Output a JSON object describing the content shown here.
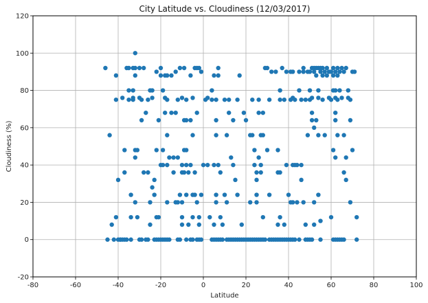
{
  "chart_data": {
    "type": "scatter",
    "title": "City Latitude vs. Cloudiness  (12/03/2017)",
    "xlabel": "Latitude",
    "ylabel": "Cloudiness (%)",
    "xlim": [
      -80,
      100
    ],
    "ylim": [
      -20,
      120
    ],
    "xticks": [
      -80,
      -60,
      -40,
      -20,
      0,
      20,
      40,
      60,
      80,
      100
    ],
    "yticks": [
      -20,
      0,
      20,
      40,
      60,
      80,
      100,
      120
    ],
    "grid": true,
    "marker_color": "#1f77b4",
    "points": [
      [
        -46,
        92
      ],
      [
        -44,
        56
      ],
      [
        -43,
        8
      ],
      [
        -45,
        0
      ],
      [
        -42,
        0
      ],
      [
        -41,
        12
      ],
      [
        -41,
        75
      ],
      [
        -41,
        88
      ],
      [
        -40,
        32
      ],
      [
        -39,
        0
      ],
      [
        -38,
        76
      ],
      [
        -37,
        48
      ],
      [
        -37,
        36
      ],
      [
        -36,
        92
      ],
      [
        -35,
        92
      ],
      [
        -35,
        80
      ],
      [
        -35,
        75
      ],
      [
        -34,
        24
      ],
      [
        -34,
        12
      ],
      [
        -34,
        0
      ],
      [
        -33,
        92
      ],
      [
        -33,
        80
      ],
      [
        -33,
        76
      ],
      [
        -33,
        75
      ],
      [
        -32,
        100
      ],
      [
        -32,
        92
      ],
      [
        -32,
        88
      ],
      [
        -32,
        48
      ],
      [
        -32,
        44
      ],
      [
        -32,
        20
      ],
      [
        -31,
        12
      ],
      [
        -31,
        48
      ],
      [
        -30,
        92
      ],
      [
        -30,
        76
      ],
      [
        -29,
        75
      ],
      [
        -29,
        64
      ],
      [
        -29,
        0
      ],
      [
        -28,
        92
      ],
      [
        -28,
        36
      ],
      [
        -27,
        68
      ],
      [
        -26,
        75
      ],
      [
        -26,
        36
      ],
      [
        -25,
        80
      ],
      [
        -25,
        8
      ],
      [
        -25,
        20
      ],
      [
        -24,
        80
      ],
      [
        -24,
        76
      ],
      [
        -24,
        28
      ],
      [
        -23,
        32
      ],
      [
        -23,
        24
      ],
      [
        -23,
        0
      ],
      [
        -22,
        90
      ],
      [
        -22,
        48
      ],
      [
        -22,
        12
      ],
      [
        -21,
        64
      ],
      [
        -21,
        12
      ],
      [
        -20,
        92
      ],
      [
        -20,
        88
      ],
      [
        -20,
        40
      ],
      [
        -19,
        80
      ],
      [
        -19,
        48
      ],
      [
        -19,
        40
      ],
      [
        -19,
        0
      ],
      [
        -18,
        88
      ],
      [
        -18,
        76
      ],
      [
        -18,
        68
      ],
      [
        -17,
        88
      ],
      [
        -17,
        75
      ],
      [
        -17,
        56
      ],
      [
        -17,
        40
      ],
      [
        -17,
        20
      ],
      [
        -16,
        44
      ],
      [
        -16,
        0
      ],
      [
        -15,
        88
      ],
      [
        -15,
        68
      ],
      [
        -14,
        44
      ],
      [
        -14,
        36
      ],
      [
        -13,
        90
      ],
      [
        -13,
        68
      ],
      [
        -13,
        20
      ],
      [
        -12,
        75
      ],
      [
        -12,
        44
      ],
      [
        -12,
        20
      ],
      [
        -11,
        92
      ],
      [
        -11,
        24
      ],
      [
        -10,
        76
      ],
      [
        -10,
        40
      ],
      [
        -10,
        36
      ],
      [
        -10,
        20
      ],
      [
        -10,
        12
      ],
      [
        -10,
        8
      ],
      [
        -9,
        92
      ],
      [
        -9,
        64
      ],
      [
        -9,
        48
      ],
      [
        -9,
        36
      ],
      [
        -8,
        75
      ],
      [
        -8,
        64
      ],
      [
        -8,
        48
      ],
      [
        -8,
        24
      ],
      [
        -8,
        40
      ],
      [
        -7,
        36
      ],
      [
        -7,
        8
      ],
      [
        -6,
        88
      ],
      [
        -6,
        64
      ],
      [
        -6,
        40
      ],
      [
        -6,
        0
      ],
      [
        -5,
        76
      ],
      [
        -5,
        56
      ],
      [
        -5,
        24
      ],
      [
        -5,
        12
      ],
      [
        -4,
        92
      ],
      [
        -4,
        36
      ],
      [
        -4,
        24
      ],
      [
        -3,
        92
      ],
      [
        -3,
        68
      ],
      [
        -3,
        20
      ],
      [
        -2,
        92
      ],
      [
        -2,
        12
      ],
      [
        -2,
        8
      ],
      [
        -1,
        90
      ],
      [
        -1,
        24
      ],
      [
        -1,
        0
      ],
      [
        0,
        40
      ],
      [
        1,
        75
      ],
      [
        2,
        76
      ],
      [
        2,
        40
      ],
      [
        3,
        12
      ],
      [
        4,
        75
      ],
      [
        4,
        80
      ],
      [
        4,
        0
      ],
      [
        5,
        88
      ],
      [
        5,
        40
      ],
      [
        5,
        8
      ],
      [
        6,
        75
      ],
      [
        6,
        64
      ],
      [
        6,
        56
      ],
      [
        6,
        24
      ],
      [
        6,
        20
      ],
      [
        7,
        92
      ],
      [
        7,
        88
      ],
      [
        7,
        40
      ],
      [
        8,
        36
      ],
      [
        8,
        12
      ],
      [
        9,
        8
      ],
      [
        9,
        0
      ],
      [
        10,
        24
      ],
      [
        10,
        75
      ],
      [
        11,
        56
      ],
      [
        11,
        20
      ],
      [
        12,
        75
      ],
      [
        12,
        68
      ],
      [
        13,
        44
      ],
      [
        14,
        64
      ],
      [
        14,
        40
      ],
      [
        15,
        32
      ],
      [
        15,
        0
      ],
      [
        16,
        75
      ],
      [
        16,
        24
      ],
      [
        17,
        88
      ],
      [
        18,
        8
      ],
      [
        18,
        0
      ],
      [
        19,
        68
      ],
      [
        20,
        64
      ],
      [
        21,
        0
      ],
      [
        22,
        20
      ],
      [
        22,
        56
      ],
      [
        23,
        56
      ],
      [
        23,
        75
      ],
      [
        24,
        48
      ],
      [
        24,
        40
      ],
      [
        25,
        36
      ],
      [
        25,
        32
      ],
      [
        25,
        24
      ],
      [
        25,
        20
      ],
      [
        25,
        0
      ],
      [
        26,
        75
      ],
      [
        26,
        68
      ],
      [
        26,
        44
      ],
      [
        27,
        40
      ],
      [
        27,
        36
      ],
      [
        27,
        56
      ],
      [
        28,
        12
      ],
      [
        28,
        68
      ],
      [
        28,
        56
      ],
      [
        29,
        92
      ],
      [
        29,
        0
      ],
      [
        30,
        92
      ],
      [
        30,
        48
      ],
      [
        31,
        24
      ],
      [
        31,
        75
      ],
      [
        32,
        90
      ],
      [
        33,
        0
      ],
      [
        34,
        90
      ],
      [
        35,
        48
      ],
      [
        35,
        8
      ],
      [
        35,
        36
      ],
      [
        36,
        80
      ],
      [
        36,
        75
      ],
      [
        36,
        36
      ],
      [
        36,
        12
      ],
      [
        37,
        92
      ],
      [
        38,
        75
      ],
      [
        38,
        8
      ],
      [
        39,
        90
      ],
      [
        39,
        40
      ],
      [
        40,
        24
      ],
      [
        40,
        0
      ],
      [
        41,
        90
      ],
      [
        41,
        20
      ],
      [
        41,
        75
      ],
      [
        42,
        90
      ],
      [
        42,
        76
      ],
      [
        42,
        40
      ],
      [
        42,
        20
      ],
      [
        43,
        75
      ],
      [
        43,
        40
      ],
      [
        43,
        0
      ],
      [
        44,
        40
      ],
      [
        44,
        20
      ],
      [
        45,
        90
      ],
      [
        45,
        80
      ],
      [
        46,
        75
      ],
      [
        46,
        40
      ],
      [
        46,
        32
      ],
      [
        47,
        92
      ],
      [
        47,
        90
      ],
      [
        47,
        20
      ],
      [
        48,
        75
      ],
      [
        48,
        8
      ],
      [
        49,
        90
      ],
      [
        49,
        56
      ],
      [
        49,
        0
      ],
      [
        50,
        90
      ],
      [
        50,
        80
      ],
      [
        50,
        75
      ],
      [
        50,
        0
      ],
      [
        51,
        92
      ],
      [
        51,
        76
      ],
      [
        51,
        68
      ],
      [
        51,
        64
      ],
      [
        52,
        92
      ],
      [
        52,
        90
      ],
      [
        52,
        60
      ],
      [
        52,
        20
      ],
      [
        52,
        8
      ],
      [
        53,
        92
      ],
      [
        53,
        88
      ],
      [
        53,
        64
      ],
      [
        54,
        92
      ],
      [
        54,
        80
      ],
      [
        54,
        76
      ],
      [
        54,
        56
      ],
      [
        54,
        24
      ],
      [
        55,
        92
      ],
      [
        55,
        90
      ],
      [
        55,
        10
      ],
      [
        55,
        0
      ],
      [
        56,
        92
      ],
      [
        56,
        75
      ],
      [
        56,
        88
      ],
      [
        57,
        90
      ],
      [
        57,
        56
      ],
      [
        58,
        92
      ],
      [
        58,
        88
      ],
      [
        59,
        90
      ],
      [
        59,
        76
      ],
      [
        60,
        75
      ],
      [
        60,
        90
      ],
      [
        60,
        12
      ],
      [
        61,
        92
      ],
      [
        61,
        88
      ],
      [
        61,
        80
      ],
      [
        61,
        48
      ],
      [
        61,
        0
      ],
      [
        62,
        90
      ],
      [
        62,
        80
      ],
      [
        62,
        76
      ],
      [
        62,
        64
      ],
      [
        62,
        44
      ],
      [
        62,
        68
      ],
      [
        63,
        92
      ],
      [
        63,
        88
      ],
      [
        63,
        75
      ],
      [
        63,
        56
      ],
      [
        63,
        0
      ],
      [
        64,
        90
      ],
      [
        64,
        80
      ],
      [
        65,
        92
      ],
      [
        65,
        76
      ],
      [
        65,
        0
      ],
      [
        66,
        90
      ],
      [
        66,
        56
      ],
      [
        66,
        36
      ],
      [
        67,
        92
      ],
      [
        67,
        44
      ],
      [
        67,
        32
      ],
      [
        68,
        80
      ],
      [
        68,
        76
      ],
      [
        69,
        75
      ],
      [
        69,
        64
      ],
      [
        69,
        20
      ],
      [
        70,
        90
      ],
      [
        70,
        48
      ],
      [
        71,
        90
      ],
      [
        72,
        12
      ],
      [
        72,
        0
      ],
      [
        -40,
        0
      ],
      [
        -39,
        0
      ],
      [
        -38,
        0
      ],
      [
        -37,
        0
      ],
      [
        -36,
        0
      ],
      [
        -30,
        0
      ],
      [
        -27,
        0
      ],
      [
        -26,
        0
      ],
      [
        -22,
        0
      ],
      [
        -21,
        0
      ],
      [
        -20,
        0
      ],
      [
        -18,
        0
      ],
      [
        -17,
        0
      ],
      [
        -12,
        0
      ],
      [
        -11,
        0
      ],
      [
        -8,
        0
      ],
      [
        -5,
        0
      ],
      [
        -3,
        0
      ],
      [
        -2,
        0
      ],
      [
        5,
        0
      ],
      [
        6,
        0
      ],
      [
        7,
        0
      ],
      [
        8,
        0
      ],
      [
        11,
        0
      ],
      [
        12,
        0
      ],
      [
        13,
        0
      ],
      [
        14,
        0
      ],
      [
        16,
        0
      ],
      [
        17,
        0
      ],
      [
        19,
        0
      ],
      [
        20,
        0
      ],
      [
        22,
        0
      ],
      [
        23,
        0
      ],
      [
        24,
        0
      ],
      [
        26,
        0
      ],
      [
        27,
        0
      ],
      [
        28,
        0
      ],
      [
        31,
        0
      ],
      [
        32,
        0
      ],
      [
        34,
        0
      ],
      [
        35,
        0
      ],
      [
        36,
        0
      ],
      [
        37,
        0
      ],
      [
        38,
        0
      ],
      [
        39,
        0
      ],
      [
        41,
        0
      ],
      [
        42,
        0
      ],
      [
        45,
        0
      ],
      [
        48,
        0
      ],
      [
        51,
        0
      ],
      [
        62,
        0
      ],
      [
        64,
        0
      ],
      [
        66,
        0
      ]
    ]
  }
}
